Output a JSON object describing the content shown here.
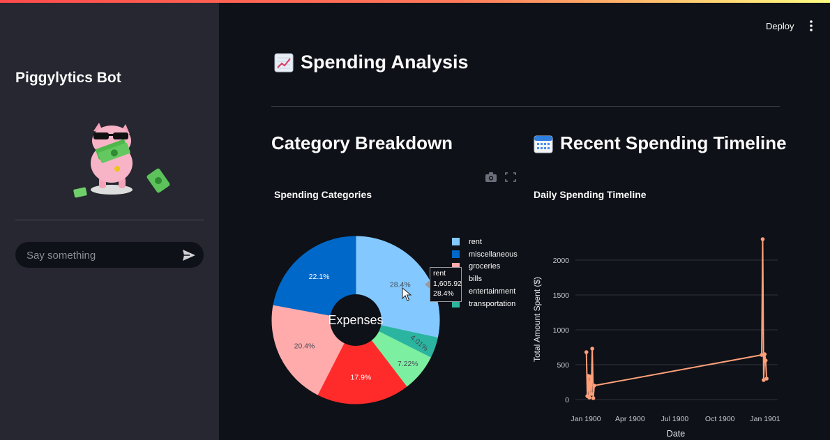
{
  "app": {
    "title": "Piggylytics Bot",
    "chat_placeholder": "Say something",
    "deploy_label": "Deploy",
    "accent_color": "#ff4b4b"
  },
  "icons": {
    "send": "send-icon",
    "menu": "kebab-menu-icon",
    "camera": "camera-icon",
    "fullscreen": "fullscreen-icon",
    "analysis": "chart-increasing-emoji-icon",
    "calendar": "calendar-emoji-icon",
    "mascot": "pig-with-money-mascot"
  },
  "main": {
    "title": "Spending Analysis",
    "left_section_title": "Category Breakdown",
    "right_section_title": "Recent Spending Timeline"
  },
  "chart_data": [
    {
      "type": "pie",
      "title": "Spending Categories",
      "center_label": "Expenses",
      "hole": true,
      "slices": [
        {
          "label": "rent",
          "percent": 28.4,
          "percent_label": "28.4%",
          "color": "#83c9ff"
        },
        {
          "label": "transportation",
          "percent": 4.01,
          "percent_label": "4.01%",
          "color": "#2bb5a0"
        },
        {
          "label": "entertainment",
          "percent": 7.22,
          "percent_label": "7.22%",
          "color": "#7defa1"
        },
        {
          "label": "bills",
          "percent": 17.9,
          "percent_label": "17.9%",
          "color": "#ff2b2b"
        },
        {
          "label": "groceries",
          "percent": 20.4,
          "percent_label": "20.4%",
          "color": "#ffabab"
        },
        {
          "label": "miscellaneous",
          "percent": 22.1,
          "percent_label": "22.1%",
          "color": "#0068c9"
        }
      ],
      "legend": [
        "rent",
        "miscellaneous",
        "groceries",
        "bills",
        "entertainment",
        "transportation"
      ],
      "legend_placement": "right",
      "tooltip": {
        "label": "rent",
        "value": "1,605.92",
        "percent": "28.4%"
      }
    },
    {
      "type": "line",
      "title": "Daily Spending Timeline",
      "xlabel": "Date",
      "ylabel": "Total Amount Spent ($)",
      "x_ticks": [
        "Jan 1900",
        "Apr 1900",
        "Jul 1900",
        "Oct 1900",
        "Jan 1901"
      ],
      "y_ticks": [
        "0",
        "500",
        "1000",
        "1500",
        "2000"
      ],
      "ylim": [
        0,
        2350
      ],
      "grid": true,
      "color": "#ffa07a",
      "series": [
        {
          "points": [
            {
              "x": "1900-01-02",
              "y": 680
            },
            {
              "x": "1900-01-04",
              "y": 50
            },
            {
              "x": "1900-01-06",
              "y": 340
            },
            {
              "x": "1900-01-08",
              "y": 30
            },
            {
              "x": "1900-01-10",
              "y": 330
            },
            {
              "x": "1900-01-12",
              "y": 80
            },
            {
              "x": "1900-01-14",
              "y": 730
            },
            {
              "x": "1900-01-16",
              "y": 20
            },
            {
              "x": "1900-01-18",
              "y": 200
            },
            {
              "x": "1900-12-25",
              "y": 640
            },
            {
              "x": "1900-12-27",
              "y": 2300
            },
            {
              "x": "1900-12-29",
              "y": 280
            },
            {
              "x": "1900-12-31",
              "y": 650
            },
            {
              "x": "1901-01-02",
              "y": 560
            },
            {
              "x": "1901-01-04",
              "y": 300
            }
          ]
        }
      ]
    }
  ]
}
